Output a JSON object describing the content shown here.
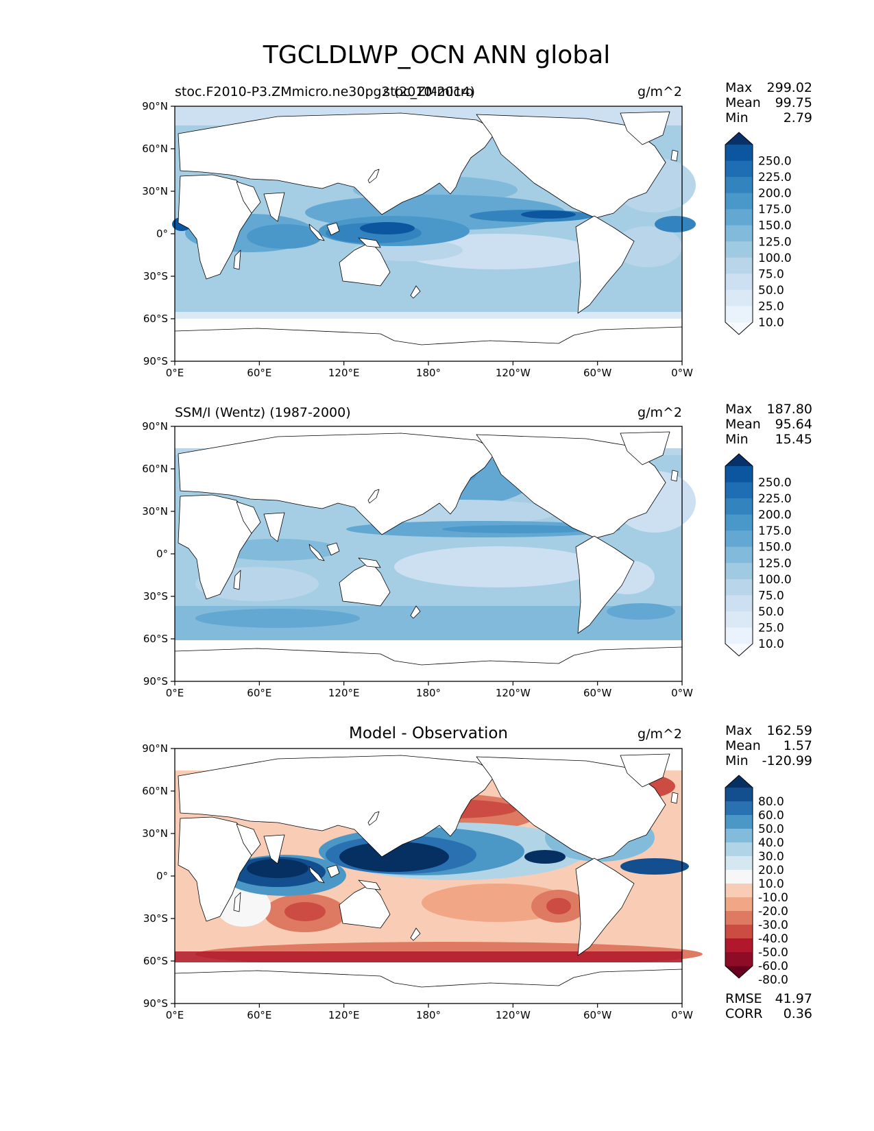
{
  "figure": {
    "title": "TGCLDLWP_OCN ANN global",
    "xticks": [
      "0°E",
      "60°E",
      "120°E",
      "180°",
      "120°W",
      "60°W",
      "0°W"
    ],
    "yticks": [
      "90°N",
      "60°N",
      "30°N",
      "0°",
      "30°S",
      "60°S",
      "90°S"
    ]
  },
  "panels": [
    {
      "id": "test",
      "left_title": "stoc.F2010-P3.ZMmicro.ne30pg2 (2010-2014)",
      "center_title": "stoc_ZMmicro",
      "units": "g/m^2",
      "stats": [
        {
          "label": "Max",
          "value": "299.02"
        },
        {
          "label": "Mean",
          "value": "99.75"
        },
        {
          "label": "Min",
          "value": "2.79"
        }
      ],
      "colorbar": {
        "labels": [
          "250.0",
          "225.0",
          "200.0",
          "175.0",
          "150.0",
          "125.0",
          "100.0",
          "75.0",
          "50.0",
          "25.0",
          "10.0"
        ],
        "colors": [
          "#f7fbff",
          "#eaf3fb",
          "#dbe9f6",
          "#cde0f1",
          "#b8d5ea",
          "#a0cae1",
          "#82badb",
          "#62a8d3",
          "#4a98c9",
          "#3383be",
          "#1f6eb3",
          "#0c56a0",
          "#08306b"
        ]
      }
    },
    {
      "id": "ref",
      "left_title": "SSM/I (Wentz) (1987-2000)",
      "center_title": "",
      "units": "g/m^2",
      "stats": [
        {
          "label": "Max",
          "value": "187.80"
        },
        {
          "label": "Mean",
          "value": "95.64"
        },
        {
          "label": "Min",
          "value": "15.45"
        }
      ],
      "colorbar": {
        "labels": [
          "250.0",
          "225.0",
          "200.0",
          "175.0",
          "150.0",
          "125.0",
          "100.0",
          "75.0",
          "50.0",
          "25.0",
          "10.0"
        ],
        "colors": [
          "#f7fbff",
          "#eaf3fb",
          "#dbe9f6",
          "#cde0f1",
          "#b8d5ea",
          "#a0cae1",
          "#82badb",
          "#62a8d3",
          "#4a98c9",
          "#3383be",
          "#1f6eb3",
          "#0c56a0",
          "#08306b"
        ]
      }
    },
    {
      "id": "diff",
      "left_title": "",
      "center_title": "Model - Observation",
      "units": "g/m^2",
      "stats": [
        {
          "label": "Max",
          "value": "162.59"
        },
        {
          "label": "Mean",
          "value": "1.57"
        },
        {
          "label": "Min",
          "value": "-120.99"
        }
      ],
      "extra_stats": [
        {
          "label": "RMSE",
          "value": "41.97"
        },
        {
          "label": "CORR",
          "value": "0.36"
        }
      ],
      "colorbar": {
        "labels": [
          "80.0",
          "60.0",
          "50.0",
          "40.0",
          "30.0",
          "20.0",
          "10.0",
          "-10.0",
          "-20.0",
          "-30.0",
          "-40.0",
          "-50.0",
          "-60.0",
          "-80.0"
        ],
        "colors": [
          "#67001f",
          "#8e0c25",
          "#b2182b",
          "#cc4c44",
          "#de7a62",
          "#f1a686",
          "#f9cdb5",
          "#f7f7f7",
          "#d5e7f1",
          "#b1d5e7",
          "#83bcdb",
          "#4b98c7",
          "#2a71b2",
          "#134e8f",
          "#053061"
        ]
      }
    }
  ],
  "chart_data": [
    {
      "type": "heatmap",
      "title": "stoc_ZMmicro",
      "subtitle": "stoc.F2010-P3.ZMmicro.ne30pg2 (2010-2014)",
      "variable": "TGCLDLWP_OCN",
      "units": "g/m^2",
      "xlim": [
        0,
        360
      ],
      "ylim": [
        -90,
        90
      ],
      "levels": [
        10,
        25,
        50,
        75,
        100,
        125,
        150,
        175,
        200,
        225,
        250
      ],
      "max": 299.02,
      "mean": 99.75,
      "min": 2.79
    },
    {
      "type": "heatmap",
      "title": "SSM/I (Wentz) (1987-2000)",
      "variable": "TGCLDLWP_OCN",
      "units": "g/m^2",
      "xlim": [
        0,
        360
      ],
      "ylim": [
        -90,
        90
      ],
      "levels": [
        10,
        25,
        50,
        75,
        100,
        125,
        150,
        175,
        200,
        225,
        250
      ],
      "max": 187.8,
      "mean": 95.64,
      "min": 15.45
    },
    {
      "type": "heatmap",
      "title": "Model - Observation",
      "variable": "TGCLDLWP_OCN",
      "units": "g/m^2",
      "xlim": [
        0,
        360
      ],
      "ylim": [
        -90,
        90
      ],
      "levels": [
        -80,
        -60,
        -50,
        -40,
        -30,
        -20,
        -10,
        10,
        20,
        30,
        40,
        50,
        60,
        80
      ],
      "max": 162.59,
      "mean": 1.57,
      "min": -120.99,
      "rmse": 41.97,
      "corr": 0.36
    }
  ]
}
